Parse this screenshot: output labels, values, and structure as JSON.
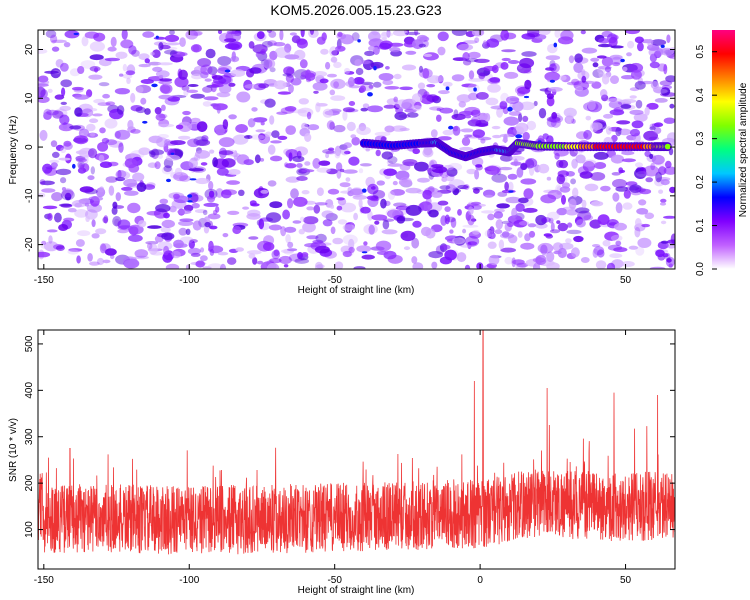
{
  "title": "KOM5.2026.005.15.23.G23",
  "chart_data": [
    {
      "type": "heatmap",
      "xlabel": "Height of straight line (km)",
      "ylabel": "Frequency (Hz)",
      "xlim": [
        -152,
        67
      ],
      "ylim": [
        -25,
        24
      ],
      "xticks": [
        -150,
        -100,
        -50,
        0,
        50
      ],
      "yticks": [
        -20,
        -10,
        0,
        10,
        20
      ],
      "colorbar": {
        "label": "Normalized spectral amplitude",
        "range": [
          0.0,
          0.55
        ],
        "ticks": [
          0.0,
          0.1,
          0.2,
          0.3,
          0.4,
          0.5
        ],
        "colors": [
          "#ffffff",
          "#c060ff",
          "#8000ff",
          "#0000ff",
          "#00c8ff",
          "#00ff80",
          "#80ff00",
          "#ffff00",
          "#ff8000",
          "#ff0000",
          "#ff0080"
        ]
      },
      "signal_track": {
        "description": "strong narrow ridge near 0 Hz",
        "points": [
          {
            "x": -40,
            "y": 0.8,
            "v": 0.12
          },
          {
            "x": -30,
            "y": 0.3,
            "v": 0.13
          },
          {
            "x": -20,
            "y": 0.8,
            "v": 0.15
          },
          {
            "x": -15,
            "y": 1.0,
            "v": 0.17
          },
          {
            "x": -10,
            "y": -1.0,
            "v": 0.13
          },
          {
            "x": -5,
            "y": -2.0,
            "v": 0.12
          },
          {
            "x": 0,
            "y": -1.0,
            "v": 0.14
          },
          {
            "x": 5,
            "y": -0.5,
            "v": 0.16
          },
          {
            "x": 10,
            "y": -1.0,
            "v": 0.2
          },
          {
            "x": 13,
            "y": 0.8,
            "v": 0.28
          },
          {
            "x": 20,
            "y": 0.2,
            "v": 0.3
          },
          {
            "x": 30,
            "y": 0.1,
            "v": 0.33
          },
          {
            "x": 40,
            "y": 0.1,
            "v": 0.45
          },
          {
            "x": 50,
            "y": 0.1,
            "v": 0.48
          },
          {
            "x": 60,
            "y": 0.1,
            "v": 0.42
          },
          {
            "x": 65,
            "y": 0.1,
            "v": 0.3
          }
        ]
      }
    },
    {
      "type": "line",
      "xlabel": "Height of straight line (km)",
      "ylabel": "SNR (10 * v/v)",
      "xlim": [
        -152,
        67
      ],
      "ylim": [
        15,
        530
      ],
      "xticks": [
        -150,
        -100,
        -50,
        0,
        50
      ],
      "yticks": [
        100,
        200,
        300,
        400,
        500
      ],
      "series": [
        {
          "name": "SNR",
          "color": "#ee3333",
          "baseline": [
            {
              "x": -150,
              "y": 125
            },
            {
              "x": -100,
              "y": 120
            },
            {
              "x": -50,
              "y": 125
            },
            {
              "x": 0,
              "y": 135
            },
            {
              "x": 20,
              "y": 160
            },
            {
              "x": 40,
              "y": 150
            },
            {
              "x": 65,
              "y": 150
            }
          ],
          "peaks": [
            {
              "x": 1,
              "y": 530
            },
            {
              "x": -2,
              "y": 420
            },
            {
              "x": 23,
              "y": 405
            },
            {
              "x": 46,
              "y": 395
            },
            {
              "x": 61,
              "y": 390
            },
            {
              "x": -141,
              "y": 275
            }
          ]
        }
      ]
    }
  ]
}
